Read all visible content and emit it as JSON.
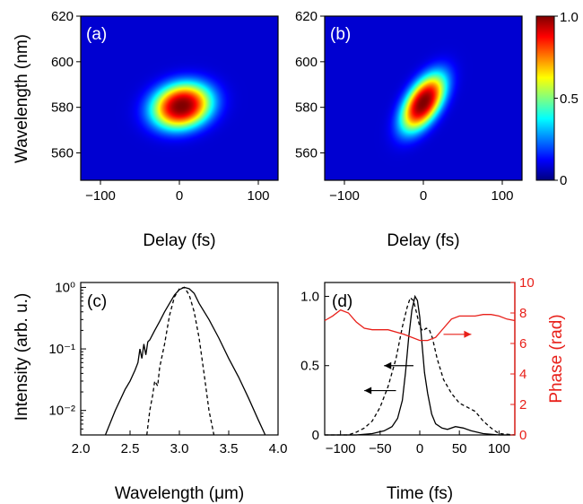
{
  "colors": {
    "phase_red": "#e8201a",
    "axis": "#000000"
  },
  "chart_data": [
    {
      "id": "a",
      "type": "heatmap",
      "panel_label": "(a)",
      "xlabel": "Delay (fs)",
      "ylabel": "Wavelength (nm)",
      "xlim": [
        -125,
        125
      ],
      "ylim": [
        548,
        620
      ],
      "xticks": [
        -100,
        0,
        100
      ],
      "xtick_labels": [
        "-100",
        "0",
        "100"
      ],
      "yticks": [
        560,
        580,
        600,
        620
      ],
      "ytick_labels": [
        "560",
        "580",
        "600",
        "620"
      ],
      "peak": {
        "delay": 3,
        "wavelength": 580.5
      },
      "width_delay_fs": 32,
      "width_wavelength_nm": 8.5,
      "tilt": 0.15
    },
    {
      "id": "b",
      "type": "heatmap",
      "panel_label": "(b)",
      "xlabel": "Delay (fs)",
      "ylabel": "",
      "xlim": [
        -125,
        125
      ],
      "ylim": [
        548,
        620
      ],
      "xticks": [
        -100,
        0,
        100
      ],
      "xtick_labels": [
        "-100",
        "0",
        "100"
      ],
      "yticks": [
        560,
        580,
        600,
        620
      ],
      "ytick_labels": [
        "560",
        "580",
        "600",
        "620"
      ],
      "peak": {
        "delay": 0,
        "wavelength": 582
      },
      "width_delay_fs": 20,
      "width_wavelength_nm": 9,
      "tilt": 0.55,
      "colorbar": {
        "min": 0,
        "max": 1.0,
        "tick_labels": [
          "1.0",
          "0.5",
          "0"
        ]
      }
    },
    {
      "id": "c",
      "type": "line",
      "panel_label": "(c)",
      "xlabel": "Wavelength (μm)",
      "ylabel": "Intensity (arb. u.)",
      "xlim": [
        2.0,
        4.0
      ],
      "ylim": [
        0.004,
        1.2
      ],
      "yscale": "log",
      "xticks": [
        2.0,
        2.5,
        3.0,
        3.5,
        4.0
      ],
      "xtick_labels": [
        "2.0",
        "2.5",
        "3.0",
        "3.5",
        "4.0"
      ],
      "ytick_labels": [
        "10⁻²",
        "10⁻¹",
        "10⁰"
      ],
      "series": [
        {
          "style": "solid",
          "x": [
            2.25,
            2.35,
            2.45,
            2.5,
            2.55,
            2.58,
            2.6,
            2.62,
            2.64,
            2.66,
            2.68,
            2.7,
            2.75,
            2.8,
            2.85,
            2.9,
            2.95,
            3.0,
            3.05,
            3.1,
            3.15,
            3.2,
            3.3,
            3.4,
            3.5,
            3.6,
            3.7,
            3.8,
            3.87
          ],
          "y": [
            0.004,
            0.01,
            0.022,
            0.03,
            0.045,
            0.06,
            0.1,
            0.07,
            0.12,
            0.08,
            0.13,
            0.14,
            0.2,
            0.28,
            0.4,
            0.55,
            0.75,
            0.92,
            1.0,
            0.95,
            0.8,
            0.55,
            0.3,
            0.15,
            0.07,
            0.035,
            0.016,
            0.007,
            0.004
          ]
        },
        {
          "style": "dashed",
          "x": [
            2.67,
            2.7,
            2.73,
            2.75,
            2.78,
            2.8,
            2.85,
            2.9,
            2.95,
            3.0,
            3.05,
            3.1,
            3.15,
            3.2,
            3.25,
            3.3,
            3.35
          ],
          "y": [
            0.004,
            0.01,
            0.018,
            0.03,
            0.025,
            0.05,
            0.12,
            0.35,
            0.7,
            0.95,
            1.0,
            0.75,
            0.4,
            0.15,
            0.04,
            0.01,
            0.004
          ]
        }
      ]
    },
    {
      "id": "d",
      "type": "line",
      "panel_label": "(d)",
      "xlabel": "Time (fs)",
      "ylabel": "",
      "ylabel_right": "Phase (rad)",
      "xlim": [
        -120,
        120
      ],
      "ylim": [
        0,
        1.1
      ],
      "ylim_right": [
        0,
        10
      ],
      "xticks": [
        -100,
        -50,
        0,
        50,
        100
      ],
      "xtick_labels": [
        "-100",
        "-50",
        "0",
        "50",
        "100"
      ],
      "yticks": [
        0,
        0.5,
        1.0
      ],
      "ytick_labels": [
        "0",
        "0.5",
        "1.0"
      ],
      "yticks_right": [
        0,
        2,
        4,
        6,
        8,
        10
      ],
      "ytick_labels_right": [
        "0",
        "2",
        "4",
        "6",
        "8",
        "10"
      ],
      "series": [
        {
          "style": "solid",
          "axis": "left",
          "x": [
            -120,
            -80,
            -60,
            -45,
            -35,
            -28,
            -22,
            -18,
            -14,
            -10,
            -6,
            -3,
            0,
            3,
            6,
            10,
            15,
            20,
            28,
            35,
            45,
            55,
            65,
            80,
            100,
            120
          ],
          "y": [
            0,
            0,
            0.01,
            0.03,
            0.06,
            0.12,
            0.25,
            0.45,
            0.7,
            0.9,
            1.0,
            0.97,
            0.85,
            0.65,
            0.45,
            0.3,
            0.15,
            0.08,
            0.05,
            0.04,
            0.06,
            0.05,
            0.03,
            0.01,
            0,
            0
          ]
        },
        {
          "style": "dashed",
          "axis": "left",
          "x": [
            -120,
            -90,
            -80,
            -70,
            -60,
            -50,
            -40,
            -30,
            -22,
            -16,
            -12,
            -8,
            -4,
            0,
            4,
            8,
            12,
            16,
            22,
            30,
            40,
            50,
            60,
            70,
            80,
            90,
            100,
            120
          ],
          "y": [
            0,
            0,
            0.02,
            0.05,
            0.1,
            0.2,
            0.35,
            0.55,
            0.78,
            0.92,
            0.99,
            0.97,
            0.88,
            0.78,
            0.75,
            0.77,
            0.76,
            0.7,
            0.55,
            0.4,
            0.3,
            0.23,
            0.2,
            0.17,
            0.1,
            0.05,
            0.01,
            0
          ]
        },
        {
          "style": "solid",
          "axis": "right",
          "color": "#e8201a",
          "x": [
            -120,
            -110,
            -100,
            -90,
            -80,
            -70,
            -60,
            -40,
            -20,
            0,
            10,
            20,
            30,
            40,
            50,
            60,
            70,
            80,
            90,
            100,
            110,
            120
          ],
          "y": [
            7.5,
            7.8,
            8.2,
            8.0,
            7.4,
            7.0,
            6.9,
            6.9,
            6.6,
            6.2,
            6.2,
            6.4,
            7.0,
            7.6,
            7.8,
            7.8,
            7.8,
            7.9,
            7.9,
            7.8,
            7.6,
            7.5
          ]
        }
      ],
      "annotations": [
        {
          "kind": "arrow",
          "direction": "left",
          "from": [
            -8,
            0.5
          ],
          "to": [
            -45,
            0.5
          ],
          "color": "#000000"
        },
        {
          "kind": "arrow",
          "direction": "left",
          "from": [
            -30,
            0.32
          ],
          "to": [
            -70,
            0.32
          ],
          "color": "#000000"
        },
        {
          "kind": "arrow",
          "direction": "right",
          "from": [
            30,
            6.6
          ],
          "to": [
            65,
            6.6
          ],
          "axis": "right",
          "color": "#e8201a"
        }
      ]
    }
  ]
}
